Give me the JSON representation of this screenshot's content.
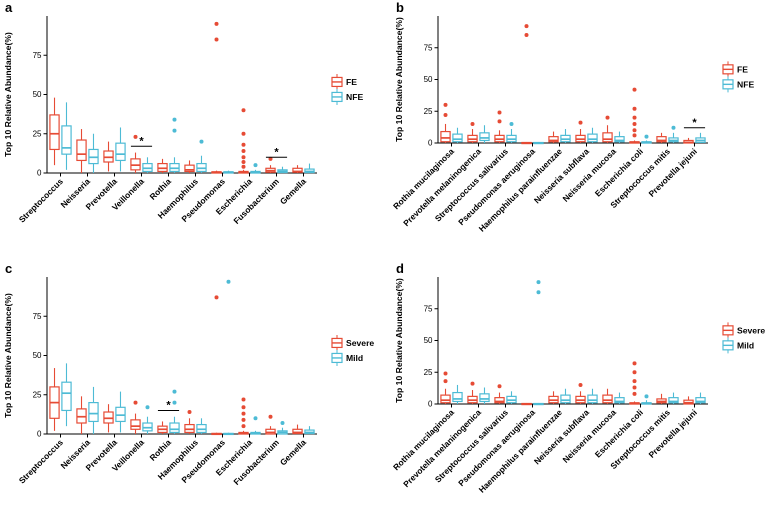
{
  "figure": {
    "background": "#ffffff",
    "panel_count": 4
  },
  "chart_data": [
    {
      "id": "a",
      "panel_label": "a",
      "type": "boxplot",
      "ylabel": "Top 10 Relative Abundance(%)",
      "ylim": [
        0,
        100
      ],
      "yticks": [
        0,
        25,
        50,
        75
      ],
      "legend_position": "right",
      "categories": [
        "Streptococcus",
        "Neisseria",
        "Prevotella",
        "Veillonella",
        "Rothia",
        "Haemophilus",
        "Pseudomonas",
        "Escherichia",
        "Fusobacterium",
        "Gemella"
      ],
      "series": [
        {
          "name": "FE",
          "color": "#E64B35",
          "boxes": [
            [
              5,
              15,
              25,
              37,
              48
            ],
            [
              0,
              8,
              12,
              21,
              28
            ],
            [
              1,
              7,
              10,
              14,
              20
            ],
            [
              0,
              2,
              5,
              9,
              13
            ],
            [
              0,
              1,
              3,
              6,
              9
            ],
            [
              0,
              1,
              2,
              5,
              8
            ],
            [
              0,
              0,
              0.2,
              0.8,
              1.5
            ],
            [
              0,
              0,
              0.2,
              1,
              2
            ],
            [
              0,
              0.5,
              1.5,
              3,
              5
            ],
            [
              0,
              0.5,
              1,
              3,
              5
            ]
          ],
          "outliers": [
            [],
            [],
            [],
            [
              23
            ],
            [],
            [],
            [
              85,
              95
            ],
            [
              4,
              7,
              10,
              14,
              18,
              25,
              40
            ],
            [
              9
            ],
            []
          ]
        },
        {
          "name": "NFE",
          "color": "#4DBBD5",
          "boxes": [
            [
              2,
              12,
              16,
              30,
              45
            ],
            [
              0,
              6,
              10,
              15,
              25
            ],
            [
              1,
              8,
              12,
              19,
              29
            ],
            [
              0,
              1,
              3,
              6,
              10
            ],
            [
              0,
              1,
              3,
              6,
              10
            ],
            [
              0,
              1,
              3,
              6,
              11
            ],
            [
              0,
              0,
              0.2,
              0.8,
              1.5
            ],
            [
              0,
              0,
              0.2,
              1,
              2
            ],
            [
              0,
              0.3,
              1,
              2,
              4
            ],
            [
              0,
              0.3,
              1,
              2.5,
              6
            ]
          ],
          "outliers": [
            [],
            [],
            [],
            [],
            [
              27,
              34
            ],
            [
              20
            ],
            [],
            [
              5
            ],
            [],
            []
          ]
        }
      ],
      "significance": [
        {
          "category": "Veillonella",
          "label": "*",
          "y": 17
        },
        {
          "category": "Fusobacterium",
          "label": "*",
          "y": 10
        }
      ]
    },
    {
      "id": "b",
      "panel_label": "b",
      "type": "boxplot",
      "ylabel": "Top 10 Relative Abundance(%)",
      "ylim": [
        0,
        100
      ],
      "yticks": [
        0,
        25,
        50,
        75
      ],
      "legend_position": "right",
      "categories": [
        "Rothia mucilaginosa",
        "Prevotella melaninogenica",
        "Streptococcus salivarius",
        "Pseudomonas aeruginosa",
        "Haemophilus parainfluenzae",
        "Neisseria subflava",
        "Neisseria mucosa",
        "Escherichia coli",
        "Streptococcus mitis",
        "Prevotella jejuni"
      ],
      "series": [
        {
          "name": "FE",
          "color": "#E64B35",
          "boxes": [
            [
              0,
              1,
              4,
              9,
              15
            ],
            [
              0,
              1,
              3,
              6,
              11
            ],
            [
              0,
              1,
              3,
              6,
              10
            ],
            [
              0,
              0,
              0.1,
              0.4,
              0.8
            ],
            [
              0,
              1,
              2,
              5,
              9
            ],
            [
              0,
              1,
              3,
              6,
              11
            ],
            [
              0,
              1,
              3,
              8,
              14
            ],
            [
              0,
              0,
              0.2,
              1,
              2
            ],
            [
              0,
              1,
              2,
              5,
              8
            ],
            [
              0,
              0,
              0.5,
              2,
              4
            ]
          ],
          "outliers": [
            [
              22,
              30
            ],
            [
              15
            ],
            [
              17,
              24
            ],
            [
              85,
              92
            ],
            [],
            [
              16
            ],
            [
              20
            ],
            [
              6,
              10,
              15,
              20,
              27,
              42
            ],
            [],
            []
          ]
        },
        {
          "name": "NFE",
          "color": "#4DBBD5",
          "boxes": [
            [
              0,
              1,
              3,
              7,
              12
            ],
            [
              0,
              2,
              4,
              8,
              14
            ],
            [
              0,
              1,
              3,
              6,
              11
            ],
            [
              0,
              0,
              0.1,
              0.4,
              0.8
            ],
            [
              0,
              1,
              3,
              6,
              11
            ],
            [
              0,
              1,
              3,
              7,
              12
            ],
            [
              0,
              1,
              2,
              5,
              9
            ],
            [
              0,
              0,
              0.2,
              1,
              2
            ],
            [
              0,
              1,
              2,
              4,
              8
            ],
            [
              0,
              0.5,
              2,
              4,
              8
            ]
          ],
          "outliers": [
            [],
            [],
            [
              15
            ],
            [],
            [],
            [],
            [],
            [
              5
            ],
            [
              12
            ],
            []
          ]
        }
      ],
      "significance": [
        {
          "category": "Prevotella jejuni",
          "label": "*",
          "y": 12
        }
      ]
    },
    {
      "id": "c",
      "panel_label": "c",
      "type": "boxplot",
      "ylabel": "Top 10 Relative Abundance(%)",
      "ylim": [
        0,
        100
      ],
      "yticks": [
        0,
        25,
        50,
        75
      ],
      "legend_position": "right",
      "categories": [
        "Streptococcus",
        "Neisseria",
        "Prevotella",
        "Veillonella",
        "Rothia",
        "Haemophilus",
        "Pseudomonas",
        "Escherichia",
        "Fusobacterium",
        "Gemella"
      ],
      "series": [
        {
          "name": "Severe",
          "color": "#E64B35",
          "boxes": [
            [
              2,
              10,
              20,
              30,
              42
            ],
            [
              0,
              7,
              11,
              16,
              24
            ],
            [
              1,
              7,
              10,
              14,
              19
            ],
            [
              0,
              3,
              5,
              9,
              13
            ],
            [
              0,
              1,
              3,
              5,
              8
            ],
            [
              0,
              1,
              3,
              6,
              10
            ],
            [
              0,
              0,
              0.1,
              0.4,
              0.8
            ],
            [
              0,
              0,
              0.2,
              1,
              2
            ],
            [
              0,
              0,
              1,
              3,
              5
            ],
            [
              0,
              0.3,
              1,
              3,
              6
            ]
          ],
          "outliers": [
            [],
            [],
            [],
            [
              20
            ],
            [],
            [
              14
            ],
            [
              87
            ],
            [
              5,
              9,
              13,
              17,
              22
            ],
            [
              11
            ],
            []
          ]
        },
        {
          "name": "Mild",
          "color": "#4DBBD5",
          "boxes": [
            [
              5,
              15,
              26,
              33,
              45
            ],
            [
              0,
              8,
              13,
              20,
              30
            ],
            [
              1,
              8,
              12,
              17,
              27
            ],
            [
              0,
              2,
              4,
              7,
              11
            ],
            [
              0,
              1,
              3,
              7,
              11
            ],
            [
              0,
              1,
              3,
              6,
              10
            ],
            [
              0,
              0,
              0.1,
              0.4,
              0.8
            ],
            [
              0,
              0,
              0.2,
              1,
              2
            ],
            [
              0,
              0,
              1,
              2,
              4
            ],
            [
              0,
              0.3,
              1,
              2.5,
              5
            ]
          ],
          "outliers": [
            [],
            [],
            [],
            [
              17
            ],
            [
              20,
              27
            ],
            [],
            [
              97
            ],
            [
              10
            ],
            [
              7
            ],
            []
          ]
        }
      ],
      "significance": [
        {
          "category": "Rothia",
          "label": "*",
          "y": 15
        }
      ]
    },
    {
      "id": "d",
      "panel_label": "d",
      "type": "boxplot",
      "ylabel": "Top 10 Relative Abundance(%)",
      "ylim": [
        0,
        100
      ],
      "yticks": [
        0,
        25,
        50,
        75
      ],
      "legend_position": "right",
      "categories": [
        "Rothia mucilaginosa",
        "Prevotella melaninogenica",
        "Streptococcus salivarius",
        "Pseudomonas aeruginosa",
        "Haemophilus parainfluenzae",
        "Neisseria subflava",
        "Neisseria mucosa",
        "Escherichia coli",
        "Streptococcus mitis",
        "Prevotella jejuni"
      ],
      "series": [
        {
          "name": "Severe",
          "color": "#E64B35",
          "boxes": [
            [
              0,
              1,
              3,
              7,
              12
            ],
            [
              0,
              1,
              3,
              6,
              11
            ],
            [
              0,
              1,
              2,
              5,
              9
            ],
            [
              0,
              0,
              0.1,
              0.4,
              0.8
            ],
            [
              0,
              1,
              3,
              6,
              10
            ],
            [
              0,
              1,
              3,
              6,
              10
            ],
            [
              0,
              1,
              3,
              7,
              12
            ],
            [
              0,
              0,
              0.2,
              1,
              2
            ],
            [
              0,
              1,
              2,
              4,
              8
            ],
            [
              0,
              0,
              1,
              3,
              6
            ]
          ],
          "outliers": [
            [
              18,
              24
            ],
            [
              16
            ],
            [
              14
            ],
            [],
            [],
            [
              15
            ],
            [],
            [
              8,
              13,
              18,
              25,
              32
            ],
            [],
            []
          ]
        },
        {
          "name": "Mild",
          "color": "#4DBBD5",
          "boxes": [
            [
              0,
              2,
              4,
              9,
              15
            ],
            [
              0,
              2,
              4,
              8,
              13
            ],
            [
              0,
              1,
              3,
              6,
              10
            ],
            [
              0,
              0,
              0.1,
              0.4,
              0.8
            ],
            [
              0,
              1,
              3,
              7,
              12
            ],
            [
              0,
              1,
              3,
              7,
              12
            ],
            [
              0,
              1,
              2,
              5,
              9
            ],
            [
              0,
              0,
              0.2,
              1,
              3
            ],
            [
              0,
              1,
              2,
              5,
              9
            ],
            [
              0,
              1,
              2,
              5,
              9
            ]
          ],
          "outliers": [
            [],
            [],
            [],
            [
              88,
              96
            ],
            [],
            [],
            [],
            [
              6
            ],
            [],
            []
          ]
        }
      ],
      "significance": []
    }
  ]
}
